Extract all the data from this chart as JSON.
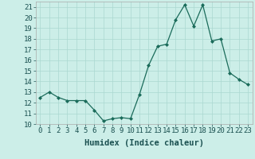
{
  "x": [
    0,
    1,
    2,
    3,
    4,
    5,
    6,
    7,
    8,
    9,
    10,
    11,
    12,
    13,
    14,
    15,
    16,
    17,
    18,
    19,
    20,
    21,
    22,
    23
  ],
  "y": [
    12.5,
    13.0,
    12.5,
    12.2,
    12.2,
    12.2,
    11.3,
    10.3,
    10.5,
    10.6,
    10.5,
    12.8,
    15.5,
    17.3,
    17.5,
    19.8,
    21.2,
    19.2,
    21.2,
    17.8,
    18.0,
    14.8,
    14.2,
    13.7
  ],
  "xlabel": "Humidex (Indice chaleur)",
  "xlim": [
    -0.5,
    23.5
  ],
  "ylim": [
    10,
    21.5
  ],
  "yticks": [
    10,
    11,
    12,
    13,
    14,
    15,
    16,
    17,
    18,
    19,
    20,
    21
  ],
  "xticks": [
    0,
    1,
    2,
    3,
    4,
    5,
    6,
    7,
    8,
    9,
    10,
    11,
    12,
    13,
    14,
    15,
    16,
    17,
    18,
    19,
    20,
    21,
    22,
    23
  ],
  "line_color": "#1a6b5a",
  "marker_color": "#1a6b5a",
  "bg_color": "#cceee8",
  "grid_color": "#aad8d0",
  "axis_label_fontsize": 7.5,
  "tick_fontsize": 6.5
}
